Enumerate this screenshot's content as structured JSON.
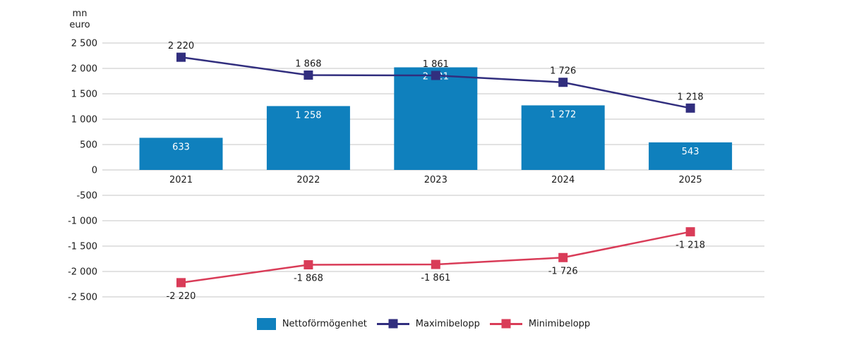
{
  "chart_data": {
    "type": "combo-bar-line",
    "title": "",
    "unit_label": {
      "line1": "mn",
      "line2": "euro"
    },
    "categories": [
      "2021",
      "2022",
      "2023",
      "2024",
      "2025"
    ],
    "series": [
      {
        "name": "Nettoförmögenhet",
        "type": "bar",
        "color": "#0F80BD",
        "values": [
          633,
          1258,
          2021,
          1272,
          543
        ],
        "value_labels": [
          "633",
          "1 258",
          "2 021",
          "1 272",
          "543"
        ],
        "label_color": "#FFFFFF"
      },
      {
        "name": "Maximibelopp",
        "type": "line",
        "color": "#312E7E",
        "values": [
          2220,
          1868,
          1861,
          1726,
          1218
        ],
        "value_labels": [
          "2 220",
          "1 868",
          "1 861",
          "1 726",
          "1 218"
        ]
      },
      {
        "name": "Minimibelopp",
        "type": "line",
        "color": "#D93C58",
        "values": [
          -2220,
          -1868,
          -1861,
          -1726,
          -1218
        ],
        "value_labels": [
          "-2 220",
          "-1 868",
          "-1 861",
          "-1 726",
          "-1 218"
        ]
      }
    ],
    "y_axis": {
      "min": -2500,
      "max": 2500,
      "step": 500,
      "tick_labels": [
        "2 500",
        "2 000",
        "1 500",
        "1 000",
        "500",
        "0",
        "-500",
        "-1 000",
        "-1 500",
        "-2 000",
        "-2 500"
      ]
    },
    "grid": true,
    "gridline_color": "#C5C5C5",
    "text_color": "#1A1A1A",
    "legend_position": "bottom"
  }
}
